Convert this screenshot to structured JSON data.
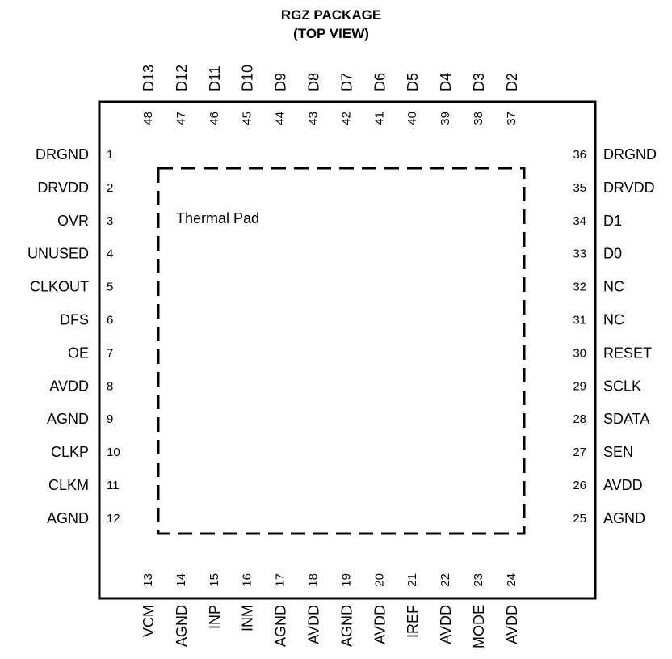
{
  "title": {
    "line1": "RGZ PACKAGE",
    "line2": "(TOP VIEW)"
  },
  "thermal_pad_label": "Thermal Pad",
  "pins": {
    "left": [
      {
        "num": "1",
        "name": "DRGND"
      },
      {
        "num": "2",
        "name": "DRVDD"
      },
      {
        "num": "3",
        "name": "OVR"
      },
      {
        "num": "4",
        "name": "UNUSED"
      },
      {
        "num": "5",
        "name": "CLKOUT"
      },
      {
        "num": "6",
        "name": "DFS"
      },
      {
        "num": "7",
        "name": "OE"
      },
      {
        "num": "8",
        "name": "AVDD"
      },
      {
        "num": "9",
        "name": "AGND"
      },
      {
        "num": "10",
        "name": "CLKP"
      },
      {
        "num": "11",
        "name": "CLKM"
      },
      {
        "num": "12",
        "name": "AGND"
      }
    ],
    "right": [
      {
        "num": "36",
        "name": "DRGND"
      },
      {
        "num": "35",
        "name": "DRVDD"
      },
      {
        "num": "34",
        "name": "D1"
      },
      {
        "num": "33",
        "name": "D0"
      },
      {
        "num": "32",
        "name": "NC"
      },
      {
        "num": "31",
        "name": "NC"
      },
      {
        "num": "30",
        "name": "RESET"
      },
      {
        "num": "29",
        "name": "SCLK"
      },
      {
        "num": "28",
        "name": "SDATA"
      },
      {
        "num": "27",
        "name": "SEN"
      },
      {
        "num": "26",
        "name": "AVDD"
      },
      {
        "num": "25",
        "name": "AGND"
      }
    ],
    "top": [
      {
        "num": "48",
        "name": "D13"
      },
      {
        "num": "47",
        "name": "D12"
      },
      {
        "num": "46",
        "name": "D11"
      },
      {
        "num": "45",
        "name": "D10"
      },
      {
        "num": "44",
        "name": "D9"
      },
      {
        "num": "43",
        "name": "D8"
      },
      {
        "num": "42",
        "name": "D7"
      },
      {
        "num": "41",
        "name": "D6"
      },
      {
        "num": "40",
        "name": "D5"
      },
      {
        "num": "39",
        "name": "D4"
      },
      {
        "num": "38",
        "name": "D3"
      },
      {
        "num": "37",
        "name": "D2"
      }
    ],
    "bottom": [
      {
        "num": "13",
        "name": "VCM"
      },
      {
        "num": "14",
        "name": "AGND"
      },
      {
        "num": "15",
        "name": "INP"
      },
      {
        "num": "16",
        "name": "INM"
      },
      {
        "num": "17",
        "name": "AGND"
      },
      {
        "num": "18",
        "name": "AVDD"
      },
      {
        "num": "19",
        "name": "AGND"
      },
      {
        "num": "20",
        "name": "AVDD"
      },
      {
        "num": "21",
        "name": "IREF"
      },
      {
        "num": "22",
        "name": "AVDD"
      },
      {
        "num": "23",
        "name": "MODE"
      },
      {
        "num": "24",
        "name": "AVDD"
      }
    ]
  }
}
